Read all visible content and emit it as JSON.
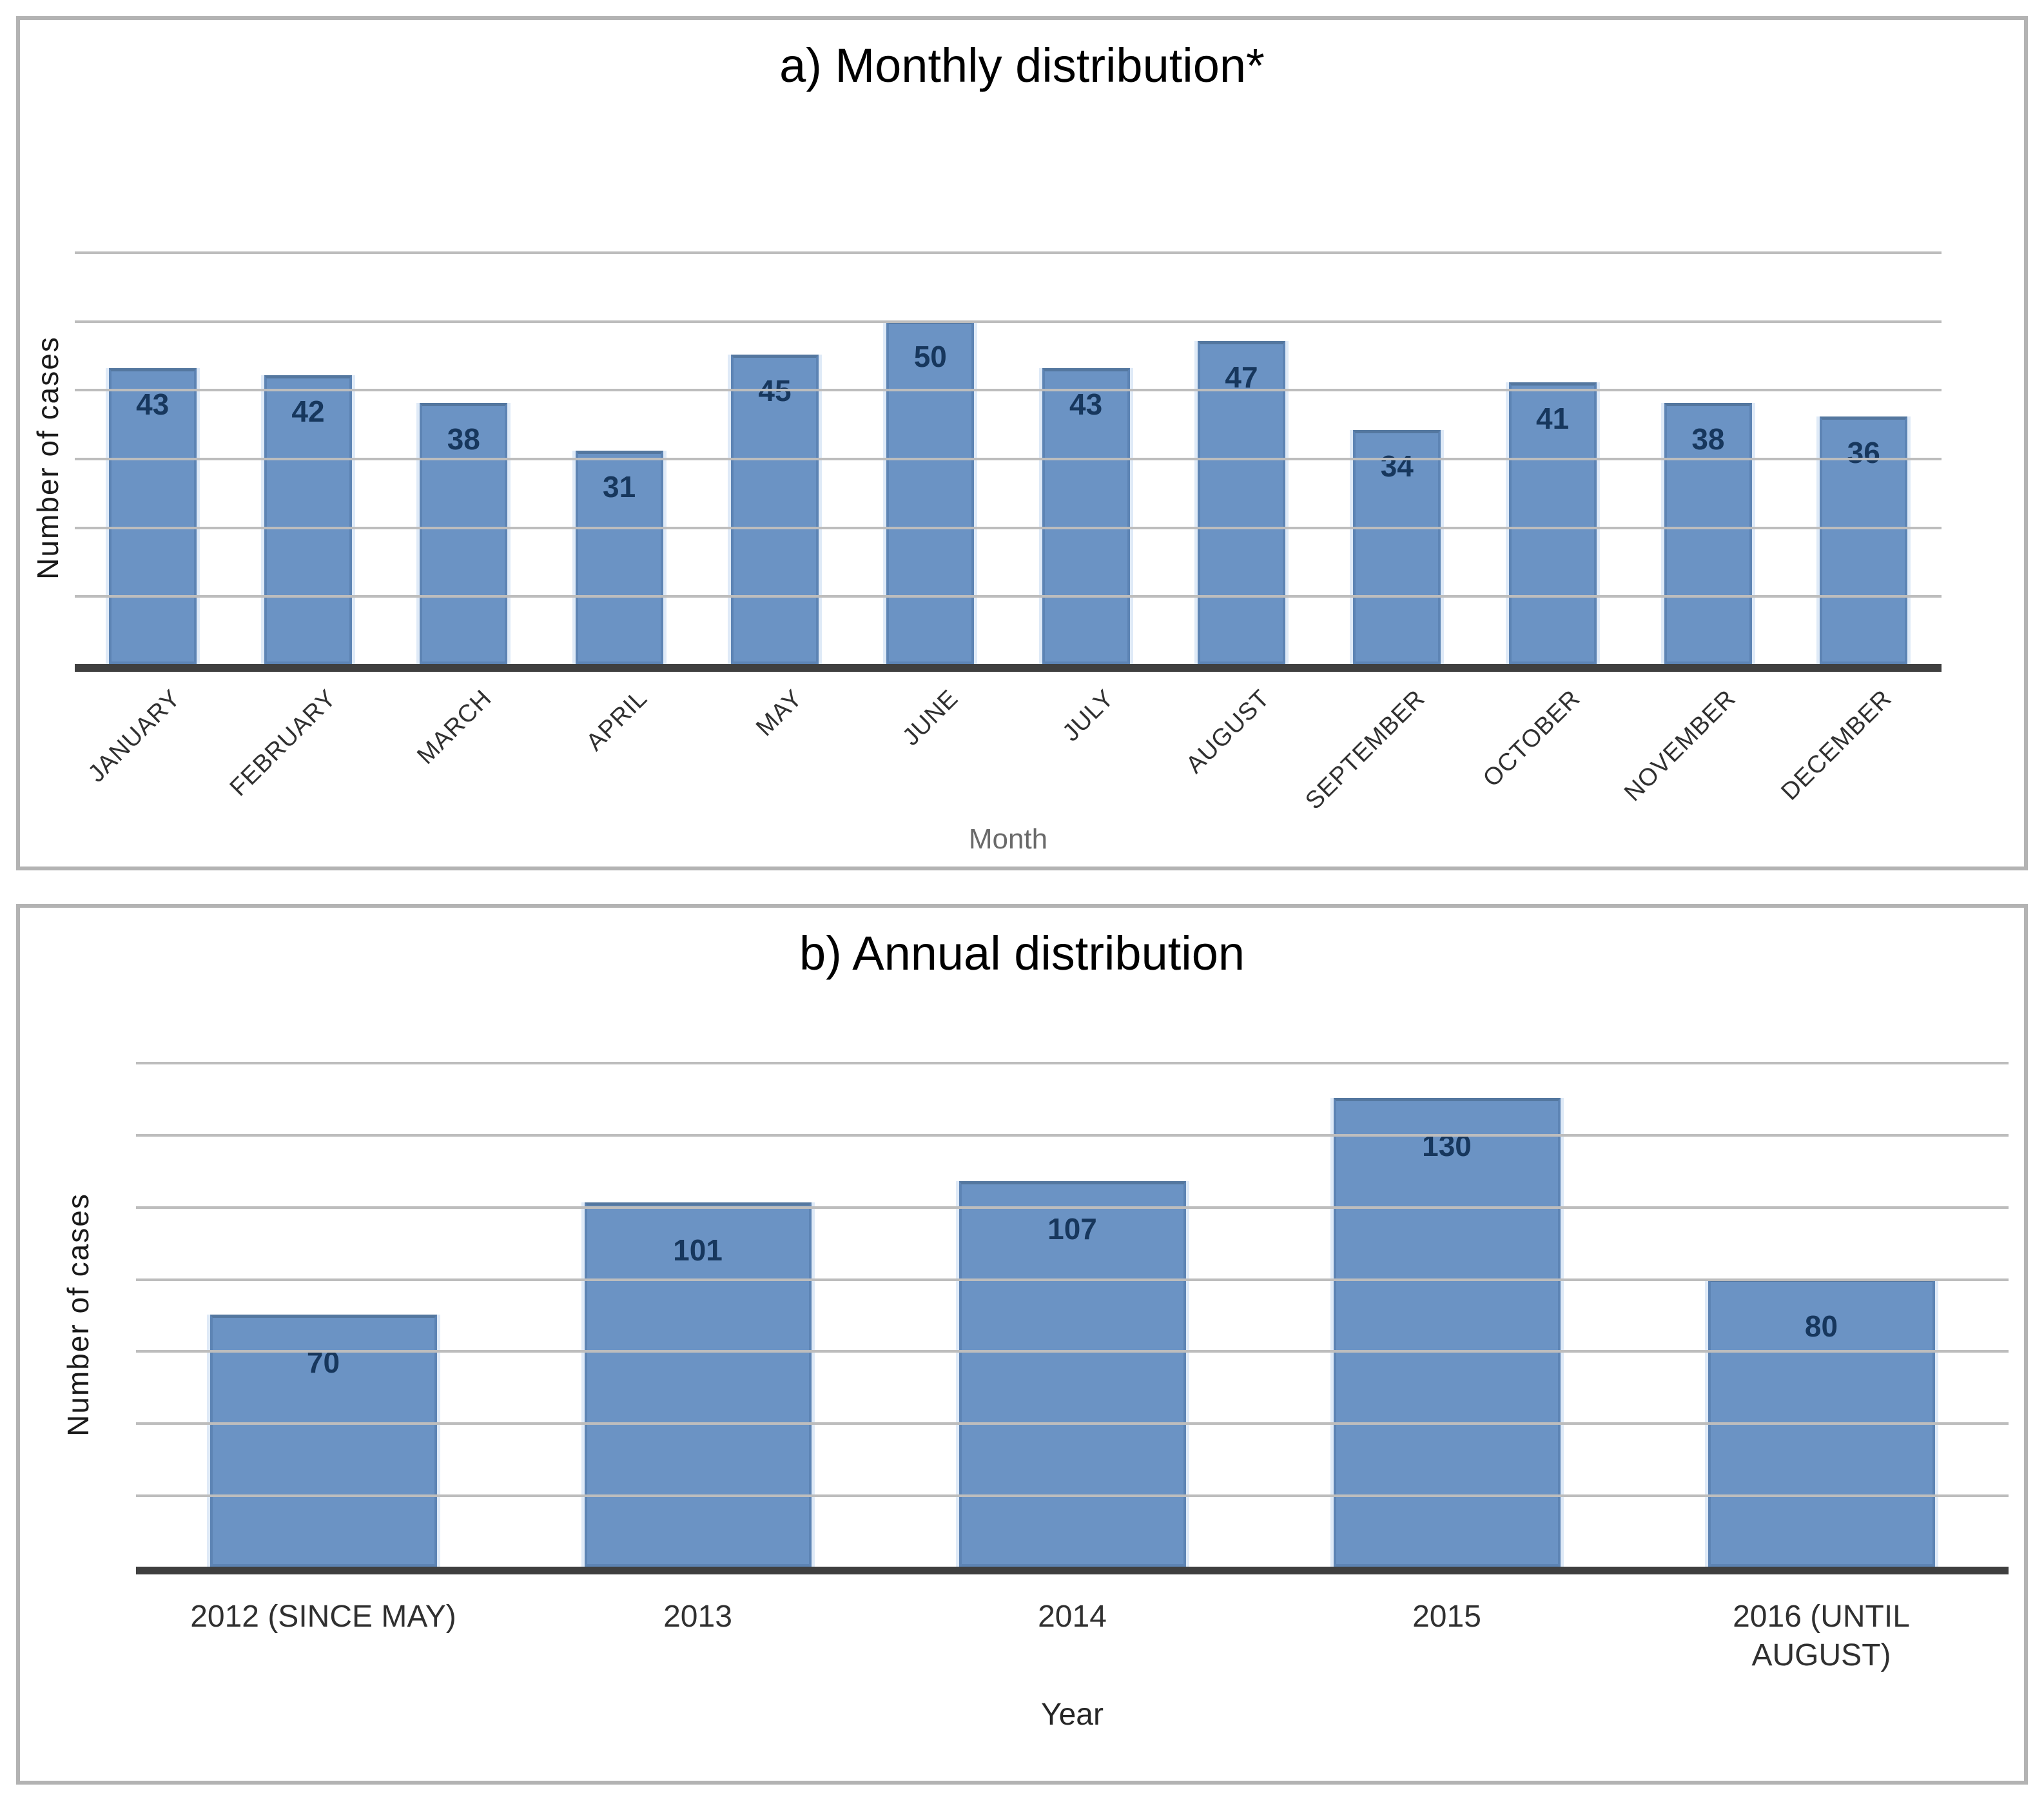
{
  "page": {
    "background": "#ffffff",
    "panel_border_color": "#b3b3b3"
  },
  "colors": {
    "bar_fill": "#6b93c4",
    "bar_edge": "#5d84b4",
    "bar_value_label": "#17375d",
    "gridline": "#bdbdbd",
    "axis_line": "#3f3f3f",
    "month_axis_title": "#6a6a6a",
    "year_axis_title": "#262626"
  },
  "chart_data": [
    {
      "type": "bar",
      "title": "a) Monthly distribution*",
      "xlabel": "Month",
      "ylabel": "Number of cases",
      "categories": [
        "JANUARY",
        "FEBRUARY",
        "MARCH",
        "APRIL",
        "MAY",
        "JUNE",
        "JULY",
        "AUGUST",
        "SEPTEMBER",
        "OCTOBER",
        "NOVEMBER",
        "DECEMBER"
      ],
      "values": [
        43,
        42,
        38,
        31,
        45,
        50,
        43,
        47,
        34,
        41,
        38,
        36
      ],
      "ylim": [
        0,
        60
      ],
      "grid_step": 10,
      "grid": "on",
      "legend": "none",
      "y_tick_labels": "none",
      "rotated_x_labels": true,
      "value_labels": "inside-top"
    },
    {
      "type": "bar",
      "title": "b) Annual distribution",
      "xlabel": "Year",
      "ylabel": "Number of cases",
      "categories": [
        "2012 (SINCE MAY)",
        "2013",
        "2014",
        "2015",
        "2016 (UNTIL AUGUST)"
      ],
      "values": [
        70,
        101,
        107,
        130,
        80
      ],
      "ylim": [
        0,
        140
      ],
      "grid_step": 20,
      "grid": "on",
      "legend": "none",
      "y_tick_labels": "none",
      "rotated_x_labels": false,
      "value_labels": "inside-top"
    }
  ]
}
